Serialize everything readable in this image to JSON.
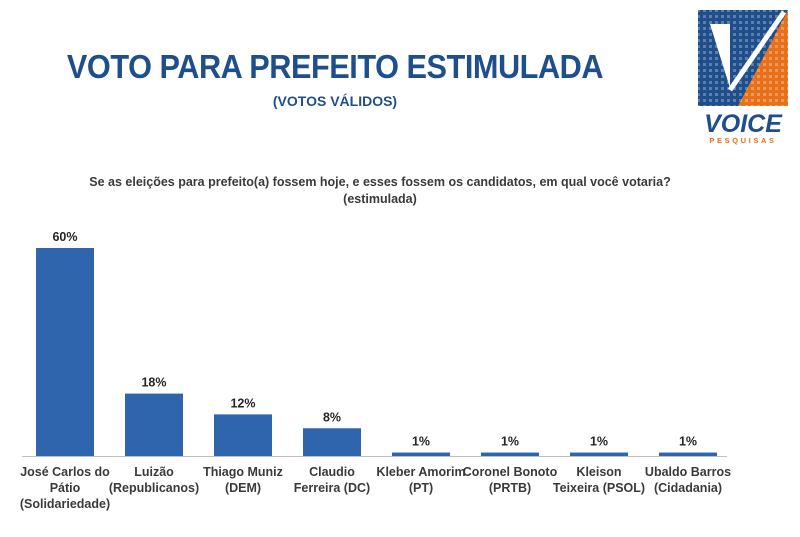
{
  "header": {
    "title": "VOTO PARA PREFEITO ESTIMULADA",
    "subtitle": "(VOTOS VÁLIDOS)",
    "question_line1": "Se as eleições para prefeito(a) fossem hoje, e esses fossem os candidatos, em qual você votaria?",
    "question_line2": "(estimulada)"
  },
  "logo": {
    "brand": "VOICE",
    "tagline": "PESQUISAS",
    "colors": {
      "blue": "#1f4e8c",
      "orange": "#e8701a"
    }
  },
  "colors": {
    "bar": "#2e65ad",
    "title": "#1f4e8c",
    "text": "#3a3a3a",
    "axis": "#bfbfbf"
  },
  "chart_data": {
    "type": "bar",
    "categories": [
      [
        "José Carlos do",
        "Pátio",
        "(Solidariedade)"
      ],
      [
        "Luizão",
        "(Republicanos)"
      ],
      [
        "Thiago Muniz",
        "(DEM)"
      ],
      [
        "Claudio",
        "Ferreira (DC)"
      ],
      [
        "Kleber Amorim",
        "(PT)"
      ],
      [
        "Coronel Bonoto",
        "(PRTB)"
      ],
      [
        "Kleison",
        "Teixeira (PSOL)"
      ],
      [
        "Ubaldo Barros",
        "(Cidadania)"
      ]
    ],
    "values": [
      60,
      18,
      12,
      8,
      1,
      1,
      1,
      1
    ],
    "data_labels": [
      "60%",
      "18%",
      "12%",
      "8%",
      "1%",
      "1%",
      "1%",
      "1%"
    ],
    "ylim": [
      0,
      60
    ],
    "grid": false,
    "legend": "none"
  }
}
